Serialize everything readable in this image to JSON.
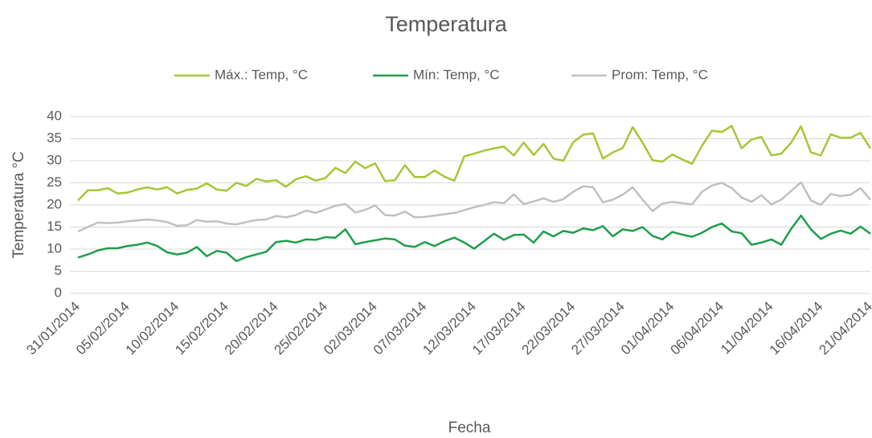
{
  "chart_data": {
    "type": "line",
    "title": "Temperatura",
    "xlabel": "Fecha",
    "ylabel": "Temperatura °C",
    "x": [
      "31/01/2014",
      "01/02/2014",
      "02/02/2014",
      "03/02/2014",
      "04/02/2014",
      "05/02/2014",
      "06/02/2014",
      "07/02/2014",
      "08/02/2014",
      "09/02/2014",
      "10/02/2014",
      "11/02/2014",
      "12/02/2014",
      "13/02/2014",
      "14/02/2014",
      "15/02/2014",
      "16/02/2014",
      "17/02/2014",
      "18/02/2014",
      "19/02/2014",
      "20/02/2014",
      "21/02/2014",
      "22/02/2014",
      "23/02/2014",
      "24/02/2014",
      "25/02/2014",
      "26/02/2014",
      "27/02/2014",
      "28/02/2014",
      "01/03/2014",
      "02/03/2014",
      "03/03/2014",
      "04/03/2014",
      "05/03/2014",
      "06/03/2014",
      "07/03/2014",
      "08/03/2014",
      "09/03/2014",
      "10/03/2014",
      "11/03/2014",
      "12/03/2014",
      "13/03/2014",
      "14/03/2014",
      "15/03/2014",
      "16/03/2014",
      "17/03/2014",
      "18/03/2014",
      "19/03/2014",
      "20/03/2014",
      "21/03/2014",
      "22/03/2014",
      "23/03/2014",
      "24/03/2014",
      "25/03/2014",
      "26/03/2014",
      "27/03/2014",
      "28/03/2014",
      "29/03/2014",
      "30/03/2014",
      "31/03/2014",
      "01/04/2014",
      "02/04/2014",
      "03/04/2014",
      "04/04/2014",
      "05/04/2014",
      "06/04/2014",
      "07/04/2014",
      "08/04/2014",
      "09/04/2014",
      "10/04/2014",
      "11/04/2014",
      "12/04/2014",
      "13/04/2014",
      "14/04/2014",
      "15/04/2014",
      "16/04/2014",
      "17/04/2014",
      "18/04/2014",
      "19/04/2014",
      "20/04/2014",
      "21/04/2014"
    ],
    "xticks": [
      "31/01/2014",
      "05/02/2014",
      "10/02/2014",
      "15/02/2014",
      "20/02/2014",
      "25/02/2014",
      "02/03/2014",
      "07/03/2014",
      "12/03/2014",
      "17/03/2014",
      "22/03/2014",
      "27/03/2014",
      "01/04/2014",
      "06/04/2014",
      "11/04/2014",
      "16/04/2014",
      "21/04/2014"
    ],
    "series": [
      {
        "name": "Máx.: Temp, °C",
        "color": "#a5c737",
        "values": [
          21,
          23.3,
          23.3,
          23.8,
          22.6,
          22.8,
          23.5,
          24,
          23.5,
          24,
          22.6,
          23.4,
          23.7,
          24.9,
          23.5,
          23.2,
          25,
          24.3,
          25.9,
          25.3,
          25.6,
          24.1,
          25.8,
          26.5,
          25.5,
          26.1,
          28.4,
          27.2,
          29.8,
          28.3,
          29.4,
          25.4,
          25.6,
          29,
          26.3,
          26.3,
          27.8,
          26.4,
          25.5,
          31,
          31.6,
          32.3,
          32.8,
          33.2,
          31.2,
          34.1,
          31.3,
          33.8,
          30.5,
          30,
          34.2,
          35.9,
          36.2,
          30.5,
          31.9,
          32.9,
          37.6,
          34.1,
          30.1,
          29.8,
          31.4,
          30.3,
          29.3,
          33.4,
          36.8,
          36.5,
          37.9,
          32.8,
          34.8,
          35.4,
          31.2,
          31.6,
          34.1,
          37.8,
          31.9,
          31.2,
          36,
          35.2,
          35.2,
          36.3,
          32.8
        ]
      },
      {
        "name": "Mín: Temp, °C",
        "color": "#1e9e4a",
        "values": [
          8.1,
          8.8,
          9.7,
          10.2,
          10.2,
          10.7,
          11,
          11.5,
          10.7,
          9.3,
          8.8,
          9.2,
          10.5,
          8.4,
          9.6,
          9.2,
          7.3,
          8.2,
          8.8,
          9.4,
          11.6,
          11.9,
          11.5,
          12.2,
          12.1,
          12.7,
          12.6,
          14.5,
          11.1,
          11.6,
          12,
          12.4,
          12.2,
          10.8,
          10.5,
          11.6,
          10.7,
          11.8,
          12.6,
          11.5,
          10.1,
          11.8,
          13.5,
          12.1,
          13.2,
          13.3,
          11.5,
          14,
          12.9,
          14.1,
          13.7,
          14.7,
          14.3,
          15.2,
          12.9,
          14.5,
          14.1,
          15,
          13,
          12.2,
          13.9,
          13.3,
          12.8,
          13.7,
          15,
          15.8,
          14,
          13.6,
          11,
          11.5,
          12.2,
          11,
          14.6,
          17.6,
          14.5,
          12.3,
          13.5,
          14.2,
          13.5,
          15.1,
          13.5
        ]
      },
      {
        "name": "Prom: Temp, °C",
        "color": "#c0c0c0",
        "values": [
          14,
          15,
          16,
          15.9,
          16,
          16.3,
          16.5,
          16.7,
          16.5,
          16.1,
          15.3,
          15.4,
          16.6,
          16.2,
          16.3,
          15.8,
          15.6,
          16.1,
          16.6,
          16.7,
          17.5,
          17.2,
          17.7,
          18.7,
          18.2,
          19,
          19.8,
          20.2,
          18.3,
          18.9,
          19.9,
          17.7,
          17.6,
          18.5,
          17.2,
          17.3,
          17.6,
          17.9,
          18.2,
          18.8,
          19.5,
          20,
          20.6,
          20.4,
          22.4,
          20.2,
          20.8,
          21.5,
          20.7,
          21.3,
          23,
          24.2,
          24,
          20.6,
          21.2,
          22.3,
          24,
          21.2,
          18.6,
          20.3,
          20.7,
          20.4,
          20.1,
          23,
          24.4,
          25,
          23.8,
          21.7,
          20.7,
          22.2,
          20.1,
          21.2,
          23.2,
          25.1,
          21,
          20,
          22.5,
          22,
          22.3,
          23.8,
          21.2
        ]
      }
    ],
    "ylim": [
      0,
      40
    ],
    "yticks": [
      0,
      5,
      10,
      15,
      20,
      25,
      30,
      35,
      40
    ],
    "grid": true,
    "legend": "top"
  }
}
